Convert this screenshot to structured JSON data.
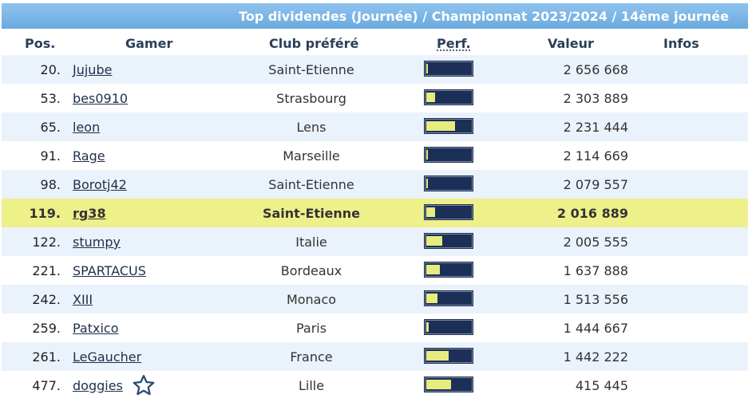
{
  "banner": {
    "title": "Top dividendes (Journée) / Championnat 2023/2024 / 14ème journée"
  },
  "headers": {
    "pos": "Pos.",
    "gamer": "Gamer",
    "club": "Club préféré",
    "perf": "Perf.",
    "value": "Valeur",
    "infos": "Infos"
  },
  "rows": [
    {
      "pos": "20.",
      "gamer": "Jujube",
      "club": "Saint-Etienne",
      "perf": 0.02,
      "value": "2 656 668"
    },
    {
      "pos": "53.",
      "gamer": "bes0910",
      "club": "Strasbourg",
      "perf": 0.2,
      "value": "2 303 889"
    },
    {
      "pos": "65.",
      "gamer": "leon",
      "club": "Lens",
      "perf": 0.65,
      "value": "2 231 444"
    },
    {
      "pos": "91.",
      "gamer": "Rage",
      "club": "Marseille",
      "perf": 0.02,
      "value": "2 114 669"
    },
    {
      "pos": "98.",
      "gamer": "Borotj42",
      "club": "Saint-Etienne",
      "perf": 0.02,
      "value": "2 079 557"
    },
    {
      "pos": "119.",
      "gamer": "rg38",
      "club": "Saint-Etienne",
      "perf": 0.2,
      "value": "2 016 889",
      "highlight": true
    },
    {
      "pos": "122.",
      "gamer": "stumpy",
      "club": "Italie",
      "perf": 0.35,
      "value": "2 005 555"
    },
    {
      "pos": "221.",
      "gamer": "SPARTACUS",
      "club": "Bordeaux",
      "perf": 0.3,
      "value": "1 637 888"
    },
    {
      "pos": "242.",
      "gamer": "XIII",
      "club": "Monaco",
      "perf": 0.25,
      "value": "1 513 556"
    },
    {
      "pos": "259.",
      "gamer": "Patxico",
      "club": "Paris",
      "perf": 0.05,
      "value": "1 444 667"
    },
    {
      "pos": "261.",
      "gamer": "LeGaucher",
      "club": "France",
      "perf": 0.5,
      "value": "1 442 222"
    },
    {
      "pos": "477.",
      "gamer": "doggies",
      "club": "Lille",
      "perf": 0.55,
      "value": "415 445",
      "icon": "star-outline-icon"
    }
  ]
}
